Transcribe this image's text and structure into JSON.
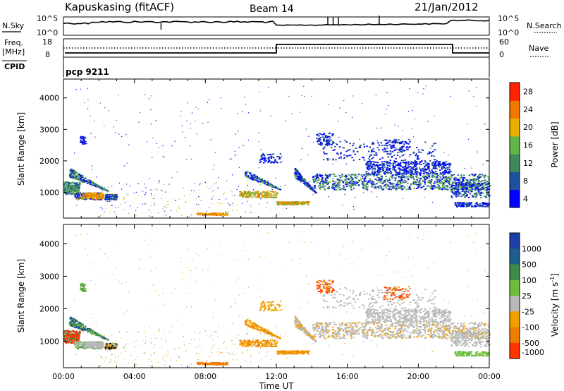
{
  "header": {
    "station": "Kapuskasing (fitACF)",
    "beam": "Beam 14",
    "date": "21/Jan/2012"
  },
  "panels": {
    "nsky": {
      "label": "N.Sky",
      "ticks_left": [
        "10^5",
        "10^0"
      ],
      "right_label": "N.Search",
      "ticks_right": [
        "10^5",
        "10^0"
      ]
    },
    "freq": {
      "label_line1": "Freq.",
      "label_line2": "[MHz]",
      "ticks_left": [
        "18",
        "8"
      ],
      "right_label": "Nave",
      "ticks_right": [
        "60",
        "0"
      ]
    },
    "cpid": {
      "label": "CPID",
      "value": "pcp 9211"
    }
  },
  "colors": {
    "power": [
      "#0000ff",
      "#1f4fa0",
      "#3e8a5a",
      "#63b547",
      "#e8b000",
      "#ee7800",
      "#ff2200"
    ],
    "velocity_pos": [
      "#1d3fa8",
      "#1d5e8c",
      "#3a8a4a",
      "#6cbd3a"
    ],
    "ground": "#b8b8b8",
    "velocity_neg": [
      "#f2a000",
      "#ef7d00",
      "#ff3300"
    ]
  },
  "chart_data": [
    {
      "type": "heatmap",
      "title": "Power [dB]",
      "xlabel": "Time UT",
      "ylabel": "Slant Range [km]",
      "x_ticks": [
        "00:00",
        "04:00",
        "08:00",
        "12:00",
        "16:00",
        "20:00",
        "00:00"
      ],
      "xlim": [
        0,
        24
      ],
      "ylim": [
        180,
        4600
      ],
      "y_ticks": [
        1000,
        2000,
        3000,
        4000
      ],
      "colorbar_label": "Power [dB]",
      "colorbar_ticks": [
        "4",
        "8",
        "12",
        "16",
        "20",
        "24",
        "28"
      ]
    },
    {
      "type": "heatmap",
      "title": "Velocity [m s^-1]",
      "xlabel": "Time UT",
      "ylabel": "Slant Range [km]",
      "x_ticks": [
        "00:00",
        "04:00",
        "08:00",
        "12:00",
        "16:00",
        "20:00",
        "00:00"
      ],
      "xlim": [
        0,
        24
      ],
      "ylim": [
        180,
        4600
      ],
      "y_ticks": [
        1000,
        2000,
        3000,
        4000
      ],
      "colorbar_label": "Velocity [m s^-1]",
      "colorbar_ticks": [
        "1000",
        "500",
        "100",
        "25",
        "-25",
        "-100",
        "-500",
        "-1000"
      ]
    }
  ]
}
